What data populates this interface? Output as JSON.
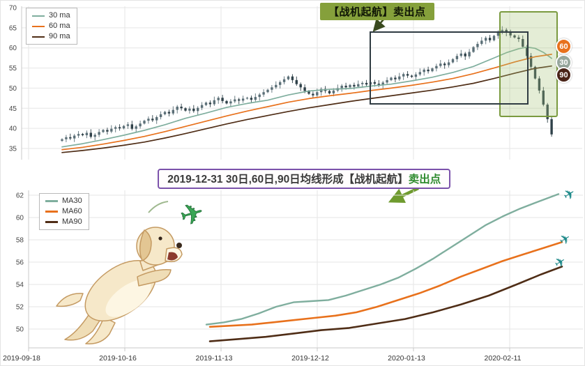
{
  "icons": {
    "plane": "✈"
  },
  "colors": {
    "grid": "#e6e6e6",
    "axis_line": "#c9c9c9",
    "axis_text": "#444444",
    "ma30": "#7fae9e",
    "ma60": "#e8711c",
    "ma90": "#4f2d16",
    "candle_up": "#5b6f77",
    "candle_down": "#2f4149",
    "callout_bg": "#85a03b",
    "banner_border": "#7b52ab",
    "banner_highlight": "#2e8b2e",
    "arrow_green": "#6f9b2f",
    "plane": "#1f8a8a",
    "toy_plane": "#3aa655",
    "sell_zone_fill": "rgba(164,196,120,0.30)",
    "sell_zone_border": "#7a9a3f",
    "box_border": "#2f3b42"
  },
  "top_chart": {
    "callout": "【战机起航】卖出点",
    "badges": [
      {
        "label": "60",
        "color": "#e8711c"
      },
      {
        "label": "30",
        "color": "#97a79d"
      },
      {
        "label": "90",
        "color": "#4a2418"
      }
    ]
  },
  "banner": {
    "text_main": "2019-12-31 30日,60日,90日均线形成【战机起航】",
    "text_highlight": "卖出点"
  },
  "x_axis": {
    "labels": [
      "2019-09-18",
      "2019-10-16",
      "2019-11-13",
      "2019-12-12",
      "2020-01-13",
      "2020-02-11"
    ]
  },
  "chart_data": [
    {
      "type": "candlestick+line",
      "title": "daily price with 30/60/90 moving averages",
      "ylim": [
        33,
        70
      ],
      "yticks": [
        35,
        40,
        45,
        50,
        55,
        60,
        65,
        70
      ],
      "xgrid": [
        40,
        178,
        316,
        454,
        592,
        730
      ],
      "grid": true,
      "legend_position": "top-left",
      "closes": [
        37.3,
        37.8,
        37.5,
        38.2,
        38.6,
        38.3,
        38.9,
        37.9,
        38.4,
        39.1,
        39.6,
        39.2,
        39.9,
        40.3,
        40.0,
        40.6,
        41.0,
        39.9,
        40.5,
        41.2,
        41.9,
        42.4,
        42.0,
        42.8,
        43.5,
        44.1,
        43.7,
        44.6,
        45.4,
        45.0,
        44.4,
        44.9,
        44.3,
        45.1,
        45.8,
        46.4,
        46.0,
        47.0,
        47.6,
        46.8,
        46.2,
        46.7,
        47.2,
        46.9,
        47.4,
        47.6,
        47.1,
        47.8,
        48.4,
        49.0,
        49.6,
        50.2,
        50.8,
        51.5,
        52.2,
        52.9,
        52.0,
        51.0,
        50.2,
        49.3,
        48.6,
        48.2,
        49.0,
        49.8,
        49.3,
        48.7,
        49.4,
        50.0,
        50.6,
        50.2,
        50.8,
        50.4,
        51.0,
        51.3,
        50.9,
        51.5,
        51.1,
        50.7,
        51.4,
        52.0,
        52.6,
        52.2,
        52.9,
        53.5,
        53.1,
        52.8,
        53.4,
        54.0,
        54.6,
        54.2,
        54.9,
        55.5,
        56.1,
        55.7,
        56.4,
        57.2,
        58.0,
        58.6,
        57.9,
        59.0,
        60.2,
        61.0,
        61.8,
        62.5,
        61.9,
        63.0,
        63.8,
        64.5,
        63.8,
        63.1,
        62.6,
        62.2,
        60.3,
        58.0,
        55.3,
        52.4,
        49.4,
        45.9,
        42.3,
        38.5
      ],
      "series": [
        {
          "name": "30 ma",
          "color_key": "ma30",
          "points": [
            [
              0,
              35.4
            ],
            [
              5,
              36.2
            ],
            [
              10,
              37.2
            ],
            [
              15,
              38.3
            ],
            [
              20,
              39.5
            ],
            [
              25,
              40.9
            ],
            [
              30,
              42.5
            ],
            [
              35,
              43.8
            ],
            [
              40,
              45.2
            ],
            [
              45,
              46.2
            ],
            [
              50,
              47.0
            ],
            [
              55,
              48.3
            ],
            [
              60,
              49.3
            ],
            [
              65,
              49.7
            ],
            [
              70,
              49.9
            ],
            [
              75,
              50.5
            ],
            [
              80,
              51.0
            ],
            [
              85,
              51.8
            ],
            [
              90,
              52.7
            ],
            [
              95,
              53.9
            ],
            [
              100,
              55.4
            ],
            [
              105,
              57.5
            ],
            [
              108,
              58.8
            ],
            [
              111,
              59.8
            ],
            [
              113,
              60.2
            ],
            [
              115,
              59.9
            ],
            [
              117,
              58.9
            ],
            [
              119,
              57.4
            ]
          ]
        },
        {
          "name": "60 ma",
          "color_key": "ma60",
          "points": [
            [
              0,
              34.7
            ],
            [
              5,
              35.3
            ],
            [
              10,
              36.1
            ],
            [
              15,
              37.0
            ],
            [
              20,
              38.0
            ],
            [
              25,
              39.2
            ],
            [
              30,
              40.5
            ],
            [
              35,
              41.8
            ],
            [
              40,
              43.1
            ],
            [
              45,
              44.3
            ],
            [
              50,
              45.4
            ],
            [
              55,
              46.5
            ],
            [
              60,
              47.4
            ],
            [
              65,
              48.1
            ],
            [
              70,
              48.7
            ],
            [
              75,
              49.4
            ],
            [
              80,
              50.0
            ],
            [
              85,
              50.7
            ],
            [
              90,
              51.5
            ],
            [
              95,
              52.4
            ],
            [
              100,
              53.6
            ],
            [
              105,
              55.0
            ],
            [
              110,
              56.5
            ],
            [
              115,
              57.8
            ],
            [
              119,
              58.4
            ]
          ]
        },
        {
          "name": "90 ma",
          "color_key": "ma90",
          "points": [
            [
              0,
              34.0
            ],
            [
              5,
              34.5
            ],
            [
              10,
              35.1
            ],
            [
              15,
              35.8
            ],
            [
              20,
              36.6
            ],
            [
              25,
              37.6
            ],
            [
              30,
              38.7
            ],
            [
              35,
              39.9
            ],
            [
              40,
              41.1
            ],
            [
              45,
              42.2
            ],
            [
              50,
              43.2
            ],
            [
              55,
              44.2
            ],
            [
              60,
              45.1
            ],
            [
              65,
              45.9
            ],
            [
              70,
              46.7
            ],
            [
              75,
              47.4
            ],
            [
              80,
              48.1
            ],
            [
              85,
              48.8
            ],
            [
              90,
              49.5
            ],
            [
              95,
              50.3
            ],
            [
              100,
              51.2
            ],
            [
              105,
              52.4
            ],
            [
              110,
              53.7
            ],
            [
              115,
              54.9
            ],
            [
              119,
              55.5
            ]
          ]
        }
      ],
      "annotations": {
        "sell_callout": "【战机起航】卖出点",
        "highlight_box_range": "rising section before the sell point",
        "sell_zone": "green shaded zone around 2020-02 top and crash"
      }
    },
    {
      "type": "line",
      "title": "moving averages detail",
      "ylim": [
        48.4,
        62.6
      ],
      "yticks": [
        50,
        52,
        54,
        56,
        58,
        60,
        62
      ],
      "xgrid": [
        40,
        178,
        316,
        454,
        592,
        730
      ],
      "xticklabels": [
        "2019-09-18",
        "2019-10-16",
        "2019-11-13",
        "2019-12-12",
        "2020-01-13",
        "2020-02-11"
      ],
      "grid": true,
      "legend_position": "top-left",
      "series": [
        {
          "name": "MA30",
          "color_key": "ma30",
          "points": [
            [
              295,
              50.4
            ],
            [
              320,
              50.6
            ],
            [
              345,
              50.9
            ],
            [
              370,
              51.4
            ],
            [
              395,
              52.0
            ],
            [
              420,
              52.4
            ],
            [
              445,
              52.5
            ],
            [
              470,
              52.6
            ],
            [
              495,
              53.0
            ],
            [
              520,
              53.5
            ],
            [
              545,
              54.0
            ],
            [
              570,
              54.6
            ],
            [
              595,
              55.4
            ],
            [
              620,
              56.3
            ],
            [
              645,
              57.3
            ],
            [
              670,
              58.3
            ],
            [
              695,
              59.3
            ],
            [
              720,
              60.1
            ],
            [
              745,
              60.8
            ],
            [
              770,
              61.4
            ],
            [
              800,
              62.1
            ]
          ]
        },
        {
          "name": "MA60",
          "color_key": "ma60",
          "points": [
            [
              300,
              50.2
            ],
            [
              330,
              50.3
            ],
            [
              360,
              50.4
            ],
            [
              390,
              50.6
            ],
            [
              420,
              50.8
            ],
            [
              450,
              51.0
            ],
            [
              480,
              51.2
            ],
            [
              510,
              51.5
            ],
            [
              540,
              52.0
            ],
            [
              570,
              52.6
            ],
            [
              600,
              53.2
            ],
            [
              630,
              53.9
            ],
            [
              660,
              54.7
            ],
            [
              690,
              55.4
            ],
            [
              720,
              56.1
            ],
            [
              750,
              56.7
            ],
            [
              780,
              57.3
            ],
            [
              805,
              57.8
            ]
          ]
        },
        {
          "name": "MA90",
          "color_key": "ma90",
          "points": [
            [
              300,
              48.9
            ],
            [
              340,
              49.1
            ],
            [
              380,
              49.3
            ],
            [
              420,
              49.6
            ],
            [
              460,
              49.9
            ],
            [
              500,
              50.1
            ],
            [
              540,
              50.5
            ],
            [
              580,
              50.9
            ],
            [
              620,
              51.5
            ],
            [
              660,
              52.2
            ],
            [
              700,
              53.0
            ],
            [
              740,
              54.0
            ],
            [
              775,
              54.9
            ],
            [
              805,
              55.6
            ]
          ]
        }
      ]
    }
  ]
}
